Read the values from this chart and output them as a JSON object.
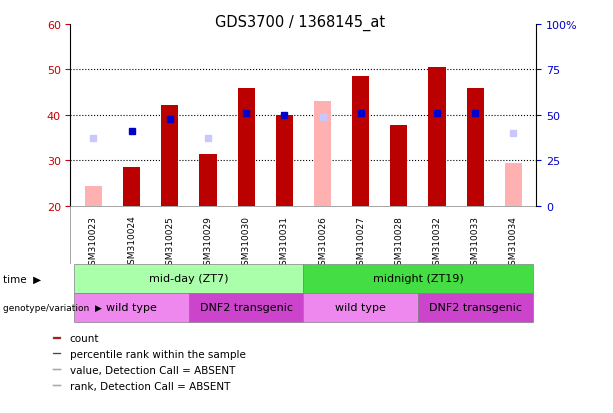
{
  "title": "GDS3700 / 1368145_at",
  "samples": [
    "GSM310023",
    "GSM310024",
    "GSM310025",
    "GSM310029",
    "GSM310030",
    "GSM310031",
    "GSM310026",
    "GSM310027",
    "GSM310028",
    "GSM310032",
    "GSM310033",
    "GSM310034"
  ],
  "count_values": [
    null,
    28.5,
    42.2,
    31.5,
    46.0,
    40.0,
    null,
    48.5,
    37.7,
    50.5,
    46.0,
    null
  ],
  "count_absent": [
    24.5,
    null,
    null,
    null,
    null,
    null,
    43.0,
    null,
    null,
    null,
    null,
    29.5
  ],
  "rank_values": [
    null,
    36.5,
    39.0,
    null,
    40.5,
    40.0,
    null,
    40.5,
    null,
    40.5,
    40.5,
    null
  ],
  "rank_absent": [
    35.0,
    null,
    null,
    35.0,
    null,
    null,
    39.5,
    null,
    null,
    null,
    null,
    36.0
  ],
  "ylim_left": [
    20,
    60
  ],
  "ylim_right": [
    0,
    100
  ],
  "yticks_left": [
    20,
    30,
    40,
    50,
    60
  ],
  "yticks_right": [
    0,
    25,
    50,
    75,
    100
  ],
  "ytick_labels_right": [
    "0",
    "25",
    "50",
    "75",
    "100%"
  ],
  "color_count": "#bb0000",
  "color_rank": "#0000cc",
  "color_count_absent": "#ffb0b0",
  "color_rank_absent": "#c8c8ff",
  "bar_width": 0.45,
  "time_groups": [
    {
      "label": "mid-day (ZT7)",
      "start": 0,
      "end": 5,
      "color": "#aaffaa"
    },
    {
      "label": "midnight (ZT19)",
      "start": 6,
      "end": 11,
      "color": "#44dd44"
    }
  ],
  "genotype_groups": [
    {
      "label": "wild type",
      "start": 0,
      "end": 2,
      "color": "#ee88ee"
    },
    {
      "label": "DNF2 transgenic",
      "start": 3,
      "end": 5,
      "color": "#cc44cc"
    },
    {
      "label": "wild type",
      "start": 6,
      "end": 8,
      "color": "#ee88ee"
    },
    {
      "label": "DNF2 transgenic",
      "start": 9,
      "end": 11,
      "color": "#cc44cc"
    }
  ],
  "sample_bg_color": "#cccccc",
  "plot_bg_color": "#ffffff",
  "left_tick_color": "#cc0000",
  "right_tick_color": "#0000cc",
  "legend_items": [
    {
      "color": "#bb0000",
      "label": "count"
    },
    {
      "color": "#0000cc",
      "label": "percentile rank within the sample"
    },
    {
      "color": "#ffb0b0",
      "label": "value, Detection Call = ABSENT"
    },
    {
      "color": "#c8c8ff",
      "label": "rank, Detection Call = ABSENT"
    }
  ]
}
